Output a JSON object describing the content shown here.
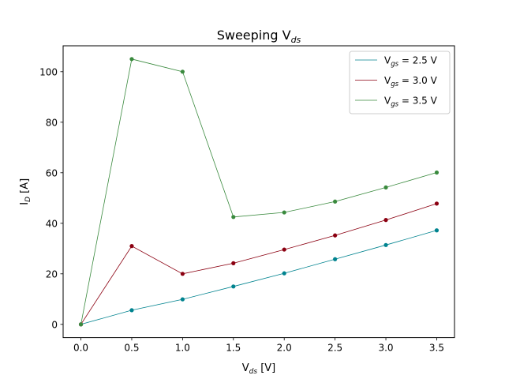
{
  "chart_data": {
    "type": "line",
    "title": {
      "base": "Sweeping V",
      "sub": "ds"
    },
    "xlabel": {
      "base": "V",
      "sub": "ds",
      "suffix": " [V]"
    },
    "ylabel": {
      "base": "I",
      "sub": "D",
      "suffix": " [A]"
    },
    "xlim": [
      -0.175,
      3.675
    ],
    "ylim": [
      -5.25,
      110.25
    ],
    "xticks": [
      0.0,
      0.5,
      1.0,
      1.5,
      2.0,
      2.5,
      3.0,
      3.5
    ],
    "xtick_labels": [
      "0.0",
      "0.5",
      "1.0",
      "1.5",
      "2.0",
      "2.5",
      "3.0",
      "3.5"
    ],
    "yticks": [
      0,
      20,
      40,
      60,
      80,
      100
    ],
    "ytick_labels": [
      "0",
      "20",
      "40",
      "60",
      "80",
      "100"
    ],
    "grid": false,
    "legend_position": "top-right",
    "x": [
      0.0,
      0.5,
      1.0,
      1.5,
      2.0,
      2.5,
      3.0,
      3.5
    ],
    "series": [
      {
        "name": {
          "base": "V",
          "sub": "gs",
          "suffix": " = 2.5 V"
        },
        "color": "#00838f",
        "values": [
          0.0,
          5.6,
          9.9,
          15.0,
          20.2,
          25.8,
          31.4,
          37.2
        ]
      },
      {
        "name": {
          "base": "V",
          "sub": "gs",
          "suffix": " = 3.0 V"
        },
        "color": "#8b0011",
        "values": [
          0.0,
          31.0,
          20.0,
          24.2,
          29.6,
          35.2,
          41.3,
          47.8
        ]
      },
      {
        "name": {
          "base": "V",
          "sub": "gs",
          "suffix": " = 3.5 V"
        },
        "color": "#3a8a3e",
        "values": [
          0.0,
          105.0,
          100.0,
          42.5,
          44.3,
          48.6,
          54.2,
          60.1
        ]
      }
    ]
  }
}
